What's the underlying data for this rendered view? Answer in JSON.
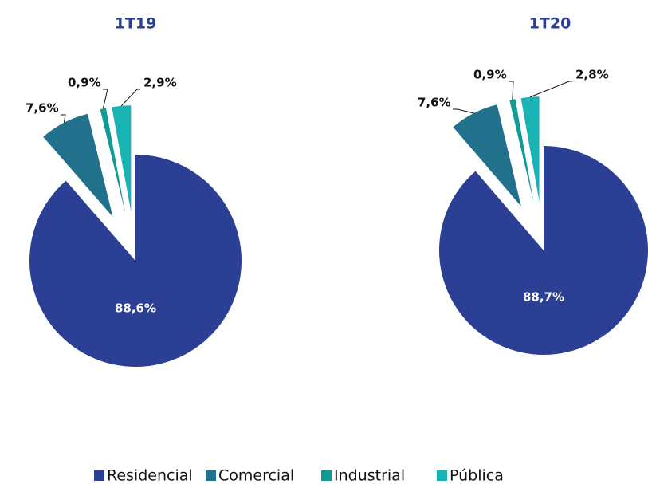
{
  "chart_data": [
    {
      "type": "pie",
      "title": "1T19",
      "categories": [
        "Residencial",
        "Comercial",
        "Industrial",
        "Pública"
      ],
      "values": [
        88.6,
        7.6,
        0.9,
        2.9
      ],
      "value_labels": [
        "88,6%",
        "7,6%",
        "0,9%",
        "2,9%"
      ],
      "colors": [
        "#2b3f94",
        "#21708c",
        "#129a94",
        "#19b3b3"
      ]
    },
    {
      "type": "pie",
      "title": "1T20",
      "categories": [
        "Residencial",
        "Comercial",
        "Industrial",
        "Pública"
      ],
      "values": [
        88.7,
        7.6,
        0.9,
        2.8
      ],
      "value_labels": [
        "88,7%",
        "7,6%",
        "0,9%",
        "2,8%"
      ],
      "colors": [
        "#2b3f94",
        "#21708c",
        "#129a94",
        "#19b3b3"
      ]
    }
  ]
}
